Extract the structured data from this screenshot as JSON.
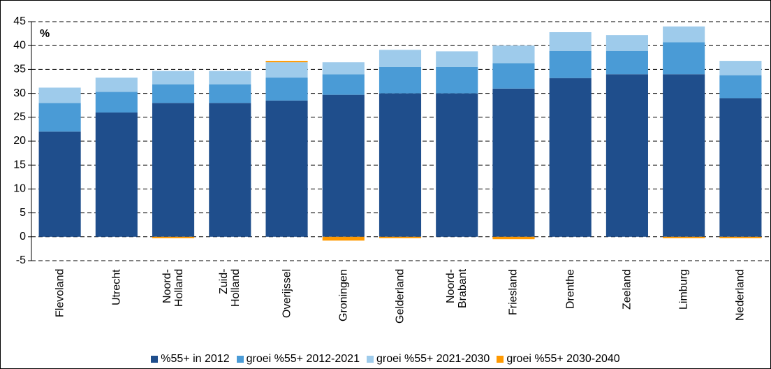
{
  "chart_data": {
    "type": "stacked_bar",
    "y_label": "%",
    "categories": [
      "Flevoland",
      "Utrecht",
      "Noord-\nHolland",
      "Zuid-\nHolland",
      "Overijssel",
      "Groningen",
      "Gelderland",
      "Noord-\nBrabant",
      "Friesland",
      "Drenthe",
      "Zeeland",
      "Limburg",
      "Nederland"
    ],
    "series": [
      {
        "name": "%55+ in 2012",
        "color": "#1f4e8c",
        "values": [
          22,
          26,
          28,
          28,
          28.5,
          29.7,
          30,
          30,
          31,
          33.2,
          34,
          34,
          29
        ]
      },
      {
        "name": "groei %55+ 2012-2021",
        "color": "#4a9bd6",
        "values": [
          6,
          4.3,
          3.9,
          3.9,
          4.8,
          4.3,
          5.5,
          5.5,
          5.3,
          5.7,
          4.9,
          6.7,
          4.8
        ]
      },
      {
        "name": "groei %55+ 2021-2030",
        "color": "#9ecbeb",
        "values": [
          3.2,
          3,
          2.8,
          2.8,
          3.2,
          2.5,
          3.6,
          3.3,
          3.7,
          3.9,
          3.3,
          3.3,
          3
        ]
      },
      {
        "name": "groei %55+ 2030-2040",
        "color": "#ff9900",
        "values": [
          0,
          0,
          -0.3,
          0,
          0.3,
          -0.8,
          -0.3,
          0,
          -0.5,
          0,
          0,
          -0.3,
          -0.3
        ]
      }
    ],
    "ylim": [
      -5,
      45
    ],
    "yticks": [
      -5,
      0,
      5,
      10,
      15,
      20,
      25,
      30,
      35,
      40,
      45
    ],
    "grid": true
  }
}
